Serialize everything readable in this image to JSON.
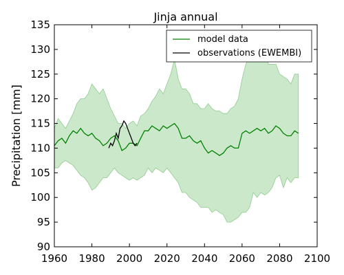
{
  "chart_data": {
    "type": "line",
    "title": "Jinja annual",
    "xlabel": "",
    "ylabel": "Precipitation [mm]",
    "xlim": [
      1960,
      2100
    ],
    "ylim": [
      90,
      135
    ],
    "xticks": [
      1960,
      1980,
      2000,
      2020,
      2040,
      2060,
      2080,
      2100
    ],
    "yticks": [
      90,
      95,
      100,
      105,
      110,
      115,
      120,
      125,
      130,
      135
    ],
    "grid": false,
    "legend_position": "top-right",
    "legend": [
      "model data",
      "observations (EWEMBI)"
    ],
    "colors": {
      "model": "#008000",
      "band": "#a9d9a9",
      "band_edge": "#8fcc8f",
      "observations": "#000000"
    },
    "series": [
      {
        "name": "model data",
        "x": [
          1960,
          1962,
          1964,
          1966,
          1968,
          1970,
          1972,
          1974,
          1976,
          1978,
          1980,
          1982,
          1984,
          1986,
          1988,
          1990,
          1992,
          1994,
          1996,
          1998,
          2000,
          2002,
          2004,
          2006,
          2008,
          2010,
          2012,
          2014,
          2016,
          2018,
          2020,
          2022,
          2024,
          2026,
          2028,
          2030,
          2032,
          2034,
          2036,
          2038,
          2040,
          2042,
          2044,
          2046,
          2048,
          2050,
          2052,
          2054,
          2056,
          2058,
          2060,
          2062,
          2064,
          2066,
          2068,
          2070,
          2072,
          2074,
          2076,
          2078,
          2080,
          2082,
          2084,
          2086,
          2088,
          2090
        ],
        "values": [
          110.5,
          111.5,
          112,
          111,
          112.5,
          113.5,
          113,
          114,
          113,
          112.5,
          113,
          112,
          111.5,
          110.5,
          111,
          112,
          112.5,
          111.5,
          109.5,
          110,
          111,
          111,
          110.5,
          112,
          113.5,
          113.5,
          114.5,
          114,
          113.5,
          114.5,
          114,
          114.5,
          115,
          114,
          112,
          112,
          112.5,
          111.5,
          111,
          111.5,
          110,
          109,
          109.5,
          109,
          108.5,
          109,
          110,
          110.5,
          110,
          110,
          113,
          113.5,
          113,
          113.5,
          114,
          113.5,
          114,
          113,
          113.5,
          114.5,
          114,
          113,
          112.5,
          112.5,
          113.5,
          113
        ]
      },
      {
        "name": "model range",
        "x": [
          1960,
          1962,
          1964,
          1966,
          1968,
          1970,
          1972,
          1974,
          1976,
          1978,
          1980,
          1982,
          1984,
          1986,
          1988,
          1990,
          1992,
          1994,
          1996,
          1998,
          2000,
          2002,
          2004,
          2006,
          2008,
          2010,
          2012,
          2014,
          2016,
          2018,
          2020,
          2022,
          2024,
          2026,
          2028,
          2030,
          2032,
          2034,
          2036,
          2038,
          2040,
          2042,
          2044,
          2046,
          2048,
          2050,
          2052,
          2054,
          2056,
          2058,
          2060,
          2062,
          2064,
          2066,
          2068,
          2070,
          2072,
          2074,
          2076,
          2078,
          2080,
          2082,
          2084,
          2086,
          2088,
          2090
        ],
        "upper": [
          114,
          116,
          115,
          114,
          115.5,
          117,
          119,
          120,
          120,
          121,
          123,
          122,
          121,
          122,
          120,
          118,
          116.5,
          115,
          115,
          114,
          115,
          115.5,
          114.5,
          116.5,
          117,
          118,
          119.5,
          120.5,
          122,
          121,
          123,
          125,
          128,
          124,
          122,
          122,
          121,
          119,
          119,
          118,
          118,
          119,
          118,
          117.5,
          117.5,
          117,
          117,
          118,
          118.5,
          120,
          124,
          127,
          128.5,
          130,
          129.5,
          131,
          130.5,
          127,
          127,
          127,
          125,
          124.5,
          124,
          123,
          125,
          125
        ],
        "lower": [
          106,
          106,
          107,
          107.5,
          107,
          106.5,
          105.5,
          104.5,
          104,
          103,
          101.5,
          102,
          103,
          104,
          104,
          105,
          106,
          105,
          104.5,
          104,
          103.5,
          104,
          103.5,
          104,
          104.5,
          106,
          105,
          106,
          105.5,
          105,
          106,
          105,
          104,
          103,
          101,
          101,
          100,
          99.5,
          99,
          98,
          98,
          98,
          97,
          97.5,
          97,
          96.5,
          95,
          95,
          95.5,
          96,
          97,
          97,
          98,
          101,
          100,
          101,
          100.5,
          101,
          102,
          104,
          104.5,
          102,
          104,
          103,
          104,
          104
        ]
      },
      {
        "name": "observations (EWEMBI)",
        "x": [
          1989,
          1990,
          1991,
          1992,
          1993,
          1994,
          1995,
          1996,
          1997,
          1998,
          1999,
          2000,
          2001,
          2002,
          2003,
          2004
        ],
        "values": [
          110,
          111,
          110.5,
          111.5,
          113,
          112,
          114,
          114.5,
          115.5,
          115,
          114,
          113,
          112,
          111,
          110.5,
          111
        ]
      }
    ]
  }
}
